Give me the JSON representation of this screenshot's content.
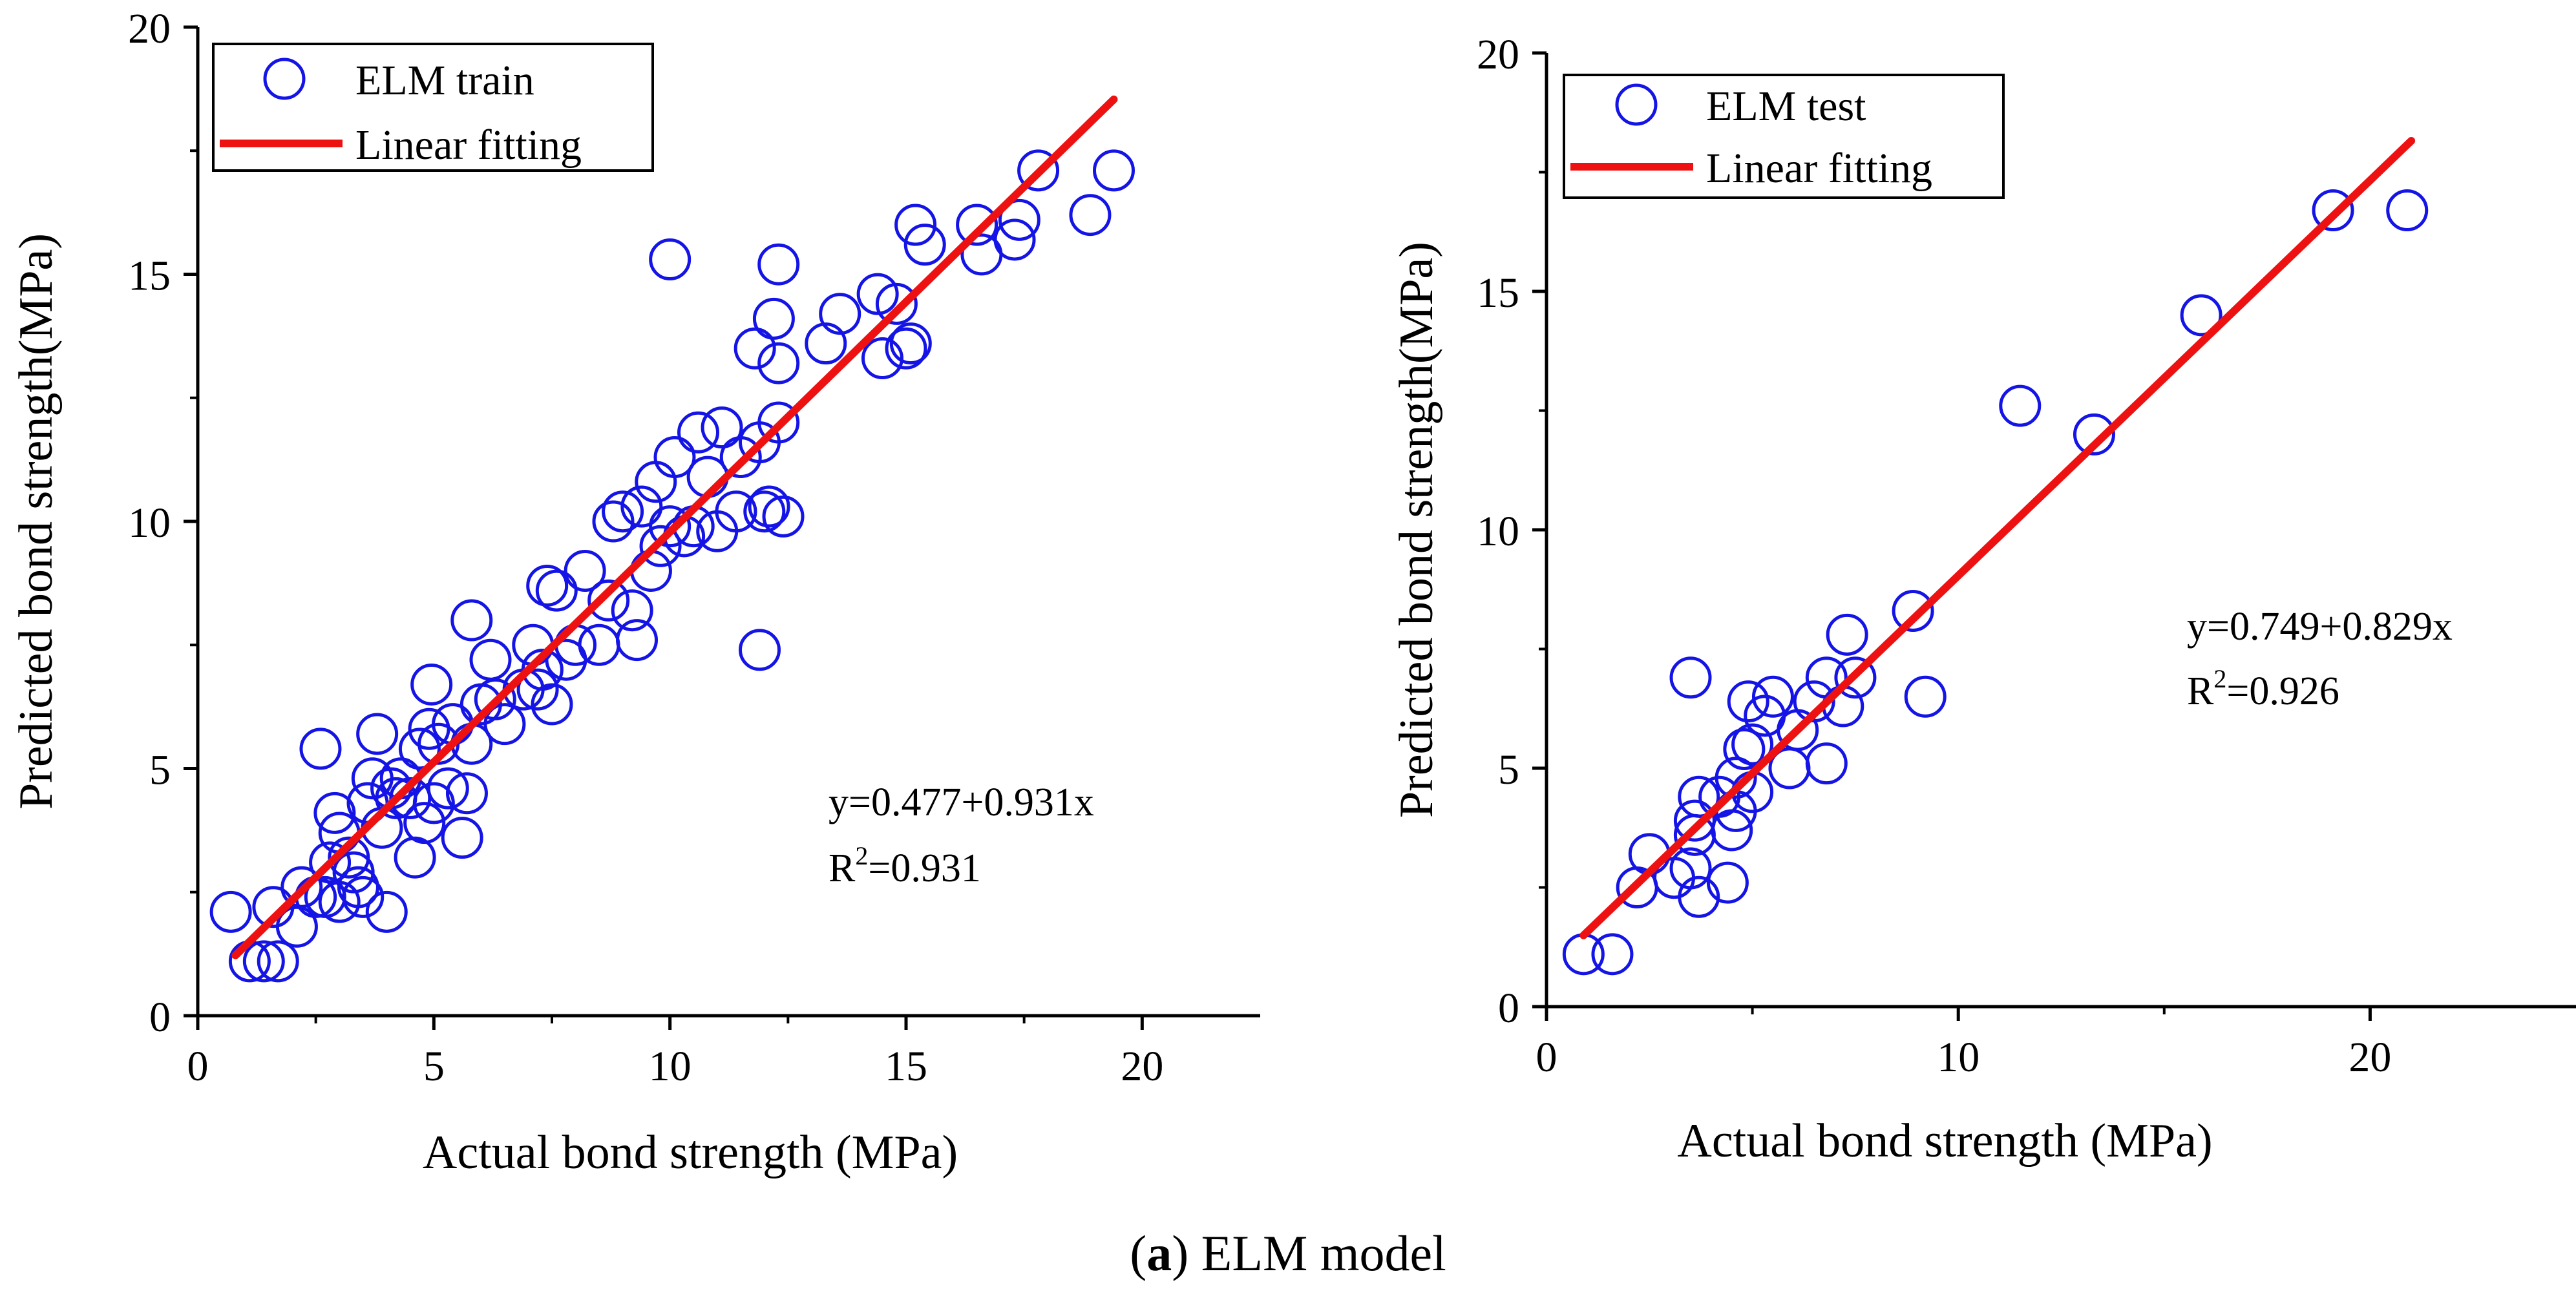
{
  "colors": {
    "marker": "#1414e6",
    "fit_line": "#ee1111",
    "axis": "#000000"
  },
  "caption": {
    "label": "a",
    "text": "ELM model",
    "open": "(",
    "close": ")"
  },
  "chart_data": [
    {
      "type": "scatter",
      "title": "",
      "xlabel": "Actual bond strength (MPa)",
      "ylabel": "Predicted bond strength(MPa)",
      "xlim": [
        0,
        22.5
      ],
      "ylim": [
        0,
        20
      ],
      "xticks": [
        0,
        5,
        10,
        15,
        20
      ],
      "yticks": [
        0,
        5,
        10,
        15,
        20
      ],
      "xtick_labels": [
        "0",
        "5",
        "10",
        "15",
        "20"
      ],
      "ytick_labels": [
        "0",
        "5",
        "10",
        "15",
        "20"
      ],
      "legend": {
        "position": "top-left",
        "entries": [
          "ELM train",
          "Linear fitting"
        ]
      },
      "annotation": {
        "equation": "y=0.477+0.931x",
        "r2_prefix": "R",
        "r2_sup": "2",
        "r2_value": "=0.931"
      },
      "fit": {
        "intercept": 0.477,
        "slope": 0.931,
        "x_range": [
          0.8,
          19.4
        ]
      },
      "series": [
        {
          "name": "ELM train",
          "points": [
            [
              0.7,
              2.1
            ],
            [
              1.1,
              1.1
            ],
            [
              1.4,
              1.1
            ],
            [
              1.7,
              1.1
            ],
            [
              1.6,
              2.2
            ],
            [
              2.1,
              1.8
            ],
            [
              2.2,
              2.6
            ],
            [
              2.5,
              2.4
            ],
            [
              2.6,
              5.4
            ],
            [
              2.7,
              2.4
            ],
            [
              2.8,
              3.1
            ],
            [
              2.9,
              4.1
            ],
            [
              3.0,
              3.7
            ],
            [
              3.0,
              2.3
            ],
            [
              3.2,
              3.2
            ],
            [
              3.3,
              2.9
            ],
            [
              3.4,
              2.6
            ],
            [
              3.5,
              2.4
            ],
            [
              3.6,
              4.3
            ],
            [
              3.7,
              4.8
            ],
            [
              3.8,
              5.7
            ],
            [
              3.9,
              3.8
            ],
            [
              4.0,
              2.1
            ],
            [
              4.1,
              4.6
            ],
            [
              4.2,
              4.4
            ],
            [
              4.3,
              4.8
            ],
            [
              4.5,
              4.4
            ],
            [
              4.6,
              3.2
            ],
            [
              4.7,
              5.4
            ],
            [
              4.8,
              3.9
            ],
            [
              4.9,
              5.8
            ],
            [
              4.95,
              6.7
            ],
            [
              5.0,
              4.3
            ],
            [
              5.1,
              5.5
            ],
            [
              5.3,
              4.6
            ],
            [
              5.4,
              5.9
            ],
            [
              5.6,
              3.6
            ],
            [
              5.7,
              4.5
            ],
            [
              5.8,
              5.5
            ],
            [
              5.8,
              8.0
            ],
            [
              6.0,
              6.3
            ],
            [
              6.2,
              7.2
            ],
            [
              6.3,
              6.4
            ],
            [
              6.5,
              5.9
            ],
            [
              6.9,
              6.6
            ],
            [
              7.1,
              7.5
            ],
            [
              7.2,
              6.6
            ],
            [
              7.3,
              7.0
            ],
            [
              7.4,
              8.7
            ],
            [
              7.5,
              6.3
            ],
            [
              7.6,
              8.6
            ],
            [
              7.8,
              7.2
            ],
            [
              8.0,
              7.5
            ],
            [
              8.2,
              9.0
            ],
            [
              8.5,
              7.5
            ],
            [
              8.7,
              8.4
            ],
            [
              8.8,
              10.0
            ],
            [
              9.0,
              10.2
            ],
            [
              9.2,
              8.2
            ],
            [
              9.3,
              7.6
            ],
            [
              9.4,
              10.3
            ],
            [
              9.6,
              9.0
            ],
            [
              9.7,
              10.8
            ],
            [
              9.8,
              9.5
            ],
            [
              10.0,
              9.9
            ],
            [
              10.0,
              15.3
            ],
            [
              10.1,
              11.3
            ],
            [
              10.3,
              9.7
            ],
            [
              10.5,
              9.9
            ],
            [
              10.6,
              11.8
            ],
            [
              10.8,
              10.9
            ],
            [
              11.0,
              9.8
            ],
            [
              11.1,
              11.9
            ],
            [
              11.4,
              10.2
            ],
            [
              11.5,
              11.3
            ],
            [
              11.8,
              13.5
            ],
            [
              11.9,
              11.6
            ],
            [
              11.9,
              7.4
            ],
            [
              12.0,
              10.2
            ],
            [
              12.1,
              10.3
            ],
            [
              12.2,
              14.1
            ],
            [
              12.3,
              13.2
            ],
            [
              12.3,
              12.0
            ],
            [
              12.3,
              15.2
            ],
            [
              12.4,
              10.1
            ],
            [
              13.3,
              13.6
            ],
            [
              13.6,
              14.2
            ],
            [
              14.4,
              14.6
            ],
            [
              14.5,
              13.3
            ],
            [
              14.8,
              14.4
            ],
            [
              15.0,
              13.5
            ],
            [
              15.1,
              13.6
            ],
            [
              15.2,
              16.0
            ],
            [
              15.4,
              15.6
            ],
            [
              16.5,
              16.0
            ],
            [
              16.6,
              15.4
            ],
            [
              17.3,
              15.7
            ],
            [
              17.4,
              16.1
            ],
            [
              17.8,
              17.1
            ],
            [
              18.9,
              16.2
            ],
            [
              19.4,
              17.1
            ]
          ]
        }
      ]
    },
    {
      "type": "scatter",
      "title": "",
      "xlabel": "Actual bond strength (MPa)",
      "ylabel": "Predicted bond strength(MPa)",
      "xlim": [
        0,
        25
      ],
      "ylim": [
        0,
        20
      ],
      "xticks": [
        0,
        10,
        20
      ],
      "yticks": [
        0,
        5,
        10,
        15,
        20
      ],
      "xtick_labels": [
        "0",
        "10",
        "20"
      ],
      "ytick_labels": [
        "0",
        "5",
        "10",
        "15",
        "20"
      ],
      "legend": {
        "position": "top-left",
        "entries": [
          "ELM test",
          "Linear fitting"
        ]
      },
      "annotation": {
        "equation": "y=0.749+0.829x",
        "r2_prefix": "R",
        "r2_sup": "2",
        "r2_value": "=0.926"
      },
      "fit": {
        "intercept": 0.749,
        "slope": 0.829,
        "x_range": [
          0.9,
          21.0
        ]
      },
      "series": [
        {
          "name": "ELM test",
          "points": [
            [
              0.9,
              1.1
            ],
            [
              1.6,
              1.1
            ],
            [
              2.2,
              2.5
            ],
            [
              2.5,
              3.2
            ],
            [
              3.1,
              2.7
            ],
            [
              3.5,
              2.9
            ],
            [
              3.5,
              6.9
            ],
            [
              3.6,
              3.9
            ],
            [
              3.6,
              3.6
            ],
            [
              3.7,
              2.3
            ],
            [
              3.7,
              4.4
            ],
            [
              4.2,
              4.4
            ],
            [
              4.4,
              2.6
            ],
            [
              4.5,
              3.7
            ],
            [
              4.6,
              4.1
            ],
            [
              4.6,
              4.8
            ],
            [
              4.8,
              5.4
            ],
            [
              4.9,
              6.4
            ],
            [
              5.0,
              4.5
            ],
            [
              5.0,
              5.5
            ],
            [
              5.3,
              6.1
            ],
            [
              5.5,
              6.5
            ],
            [
              5.9,
              5.0
            ],
            [
              6.1,
              5.8
            ],
            [
              6.5,
              6.4
            ],
            [
              6.8,
              5.1
            ],
            [
              6.8,
              6.9
            ],
            [
              7.2,
              6.3
            ],
            [
              7.3,
              7.8
            ],
            [
              7.5,
              6.9
            ],
            [
              8.9,
              8.3
            ],
            [
              9.2,
              6.5
            ],
            [
              11.5,
              12.6
            ],
            [
              13.3,
              12.0
            ],
            [
              15.9,
              14.5
            ],
            [
              19.1,
              16.7
            ],
            [
              20.9,
              16.7
            ]
          ]
        }
      ]
    }
  ]
}
